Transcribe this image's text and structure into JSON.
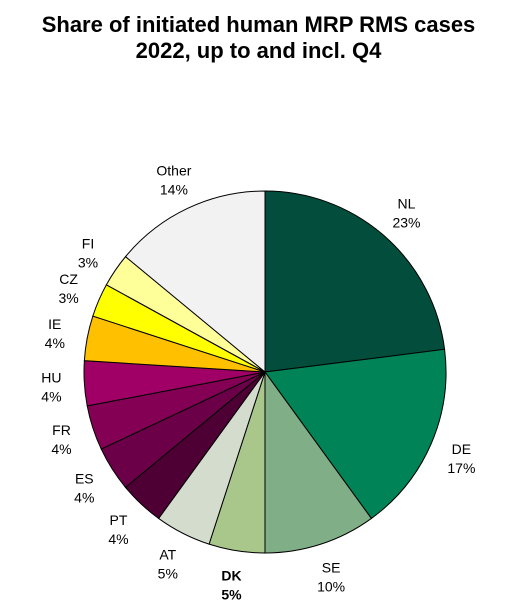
{
  "chart_data": {
    "type": "pie",
    "title_lines": [
      "Share of initiated human MRP RMS cases",
      "2022, up to and incl. Q4"
    ],
    "start_angle_deg": 0,
    "direction": "clockwise",
    "slices": [
      {
        "label": "NL",
        "value_label": "23%",
        "value": 23,
        "color": "#024d3c",
        "bold": false
      },
      {
        "label": "DE",
        "value_label": "17%",
        "value": 17,
        "color": "#008356",
        "bold": false
      },
      {
        "label": "SE",
        "value_label": "10%",
        "value": 10,
        "color": "#80ae86",
        "bold": false
      },
      {
        "label": "DK",
        "value_label": "5%",
        "value": 5,
        "color": "#a9c78b",
        "bold": true
      },
      {
        "label": "AT",
        "value_label": "5%",
        "value": 5,
        "color": "#d4dcce",
        "bold": false
      },
      {
        "label": "PT",
        "value_label": "4%",
        "value": 4,
        "color": "#4e0035",
        "bold": false
      },
      {
        "label": "ES",
        "value_label": "4%",
        "value": 4,
        "color": "#6b0049",
        "bold": false
      },
      {
        "label": "FR",
        "value_label": "4%",
        "value": 4,
        "color": "#840054",
        "bold": false
      },
      {
        "label": "HU",
        "value_label": "4%",
        "value": 4,
        "color": "#a00066",
        "bold": false
      },
      {
        "label": "IE",
        "value_label": "4%",
        "value": 4,
        "color": "#ffc000",
        "bold": false
      },
      {
        "label": "CZ",
        "value_label": "3%",
        "value": 3,
        "color": "#ffff00",
        "bold": false
      },
      {
        "label": "FI",
        "value_label": "3%",
        "value": 3,
        "color": "#ffff99",
        "bold": false
      },
      {
        "label": "Other",
        "value_label": "14%",
        "value": 14,
        "color": "#f2f2f2",
        "bold": false
      }
    ]
  }
}
